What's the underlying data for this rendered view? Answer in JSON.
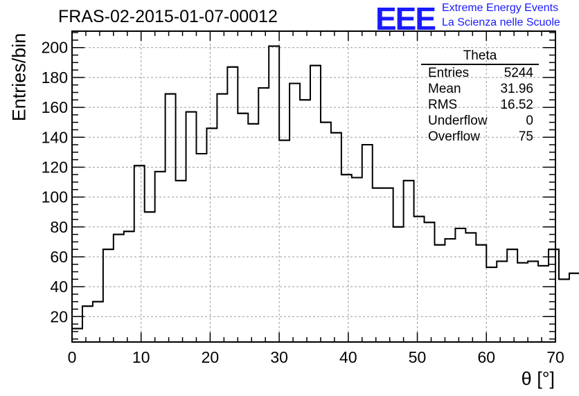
{
  "title": "FRAS-02-2015-01-07-00012",
  "logo": {
    "text": "EEE",
    "line1": "Extreme Energy Events",
    "line2": "La Scienza nelle Scuole",
    "color": "#1a1aff"
  },
  "stats": {
    "title": "Theta",
    "rows": [
      {
        "label": "Entries",
        "value": "5244"
      },
      {
        "label": "Mean",
        "value": "31.96"
      },
      {
        "label": "RMS",
        "value": "16.52"
      },
      {
        "label": "Underflow",
        "value": "0"
      },
      {
        "label": "Overflow",
        "value": "75"
      }
    ]
  },
  "chart_data": {
    "type": "bar",
    "style": "step-histogram",
    "xlabel": "θ [°]",
    "ylabel": "Entries/bin",
    "xlim": [
      0,
      70
    ],
    "ylim": [
      3,
      211
    ],
    "grid": true,
    "x_ticks": [
      0,
      10,
      20,
      30,
      40,
      50,
      60,
      70
    ],
    "y_ticks": [
      20,
      40,
      60,
      80,
      100,
      120,
      140,
      160,
      180,
      200
    ],
    "bin_width": 1.5,
    "bin_edges_start": 0,
    "values": [
      12,
      27,
      30,
      65,
      75,
      77,
      121,
      90,
      117,
      169,
      111,
      157,
      129,
      146,
      169,
      187,
      156,
      149,
      173,
      201,
      138,
      176,
      165,
      188,
      150,
      143,
      115,
      113,
      135,
      106,
      106,
      80,
      111,
      87,
      83,
      68,
      72,
      79,
      76,
      68,
      53,
      57,
      65,
      56,
      57,
      54,
      65,
      45,
      49,
      48
    ]
  }
}
